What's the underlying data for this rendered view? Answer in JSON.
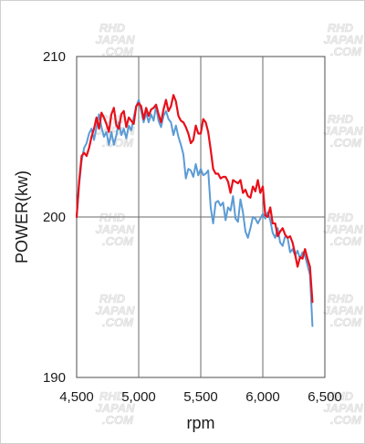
{
  "watermark": {
    "lines": [
      "RHD",
      "JAPAN",
      ".COM"
    ]
  },
  "chart_data": {
    "type": "line",
    "title": "",
    "xlabel": "rpm",
    "ylabel": "POWER(kw)",
    "xlim": [
      4500,
      6500
    ],
    "ylim": [
      190,
      210
    ],
    "xticks": [
      4500,
      5000,
      5500,
      6000,
      6500
    ],
    "xtick_labels": [
      "4,500",
      "5,000",
      "5,500",
      "6,000",
      "6,500"
    ],
    "yticks": [
      190,
      200,
      210
    ],
    "ytick_labels": [
      "190",
      "200",
      "210"
    ],
    "grid": {
      "vertical": true,
      "horizontal": true
    },
    "legend": "none",
    "series": [
      {
        "color": "#5b9bd5",
        "points": [
          [
            4500,
            200.0
          ],
          [
            4520,
            202.0
          ],
          [
            4540,
            203.5
          ],
          [
            4560,
            204.3
          ],
          [
            4580,
            204.6
          ],
          [
            4600,
            205.2
          ],
          [
            4620,
            205.5
          ],
          [
            4640,
            204.8
          ],
          [
            4660,
            205.6
          ],
          [
            4680,
            206.4
          ],
          [
            4700,
            205.6
          ],
          [
            4720,
            205.0
          ],
          [
            4740,
            205.3
          ],
          [
            4760,
            204.5
          ],
          [
            4780,
            205.3
          ],
          [
            4800,
            204.5
          ],
          [
            4820,
            205.1
          ],
          [
            4840,
            205.9
          ],
          [
            4860,
            205.1
          ],
          [
            4880,
            205.5
          ],
          [
            4900,
            204.9
          ],
          [
            4920,
            205.7
          ],
          [
            4940,
            205.4
          ],
          [
            4960,
            206.2
          ],
          [
            4980,
            206.9
          ],
          [
            5000,
            207.3
          ],
          [
            5020,
            206.6
          ],
          [
            5040,
            205.9
          ],
          [
            5060,
            206.5
          ],
          [
            5080,
            205.9
          ],
          [
            5100,
            206.4
          ],
          [
            5120,
            206.0
          ],
          [
            5140,
            206.9
          ],
          [
            5160,
            206.0
          ],
          [
            5180,
            205.6
          ],
          [
            5200,
            206.3
          ],
          [
            5220,
            206.6
          ],
          [
            5240,
            206.1
          ],
          [
            5260,
            205.9
          ],
          [
            5280,
            205.1
          ],
          [
            5300,
            205.7
          ],
          [
            5320,
            205.0
          ],
          [
            5340,
            204.5
          ],
          [
            5360,
            203.9
          ],
          [
            5380,
            202.4
          ],
          [
            5400,
            203.0
          ],
          [
            5420,
            202.9
          ],
          [
            5440,
            202.5
          ],
          [
            5460,
            203.3
          ],
          [
            5480,
            202.6
          ],
          [
            5500,
            203.0
          ],
          [
            5520,
            202.6
          ],
          [
            5540,
            202.7
          ],
          [
            5560,
            202.9
          ],
          [
            5580,
            200.6
          ],
          [
            5600,
            199.6
          ],
          [
            5620,
            200.9
          ],
          [
            5640,
            201.0
          ],
          [
            5660,
            200.7
          ],
          [
            5680,
            200.9
          ],
          [
            5700,
            199.8
          ],
          [
            5720,
            200.6
          ],
          [
            5740,
            200.4
          ],
          [
            5760,
            201.3
          ],
          [
            5780,
            199.9
          ],
          [
            5800,
            199.7
          ],
          [
            5820,
            201.1
          ],
          [
            5840,
            200.3
          ],
          [
            5860,
            199.1
          ],
          [
            5880,
            198.7
          ],
          [
            5900,
            199.3
          ],
          [
            5920,
            200.0
          ],
          [
            5940,
            199.9
          ],
          [
            5960,
            199.6
          ],
          [
            5980,
            199.9
          ],
          [
            6000,
            200.2
          ],
          [
            6020,
            199.9
          ],
          [
            6040,
            200.3
          ],
          [
            6060,
            199.8
          ],
          [
            6080,
            199.0
          ],
          [
            6100,
            198.7
          ],
          [
            6120,
            199.3
          ],
          [
            6140,
            198.4
          ],
          [
            6160,
            198.2
          ],
          [
            6180,
            198.8
          ],
          [
            6200,
            198.7
          ],
          [
            6220,
            197.8
          ],
          [
            6240,
            198.0
          ],
          [
            6260,
            197.6
          ],
          [
            6280,
            197.9
          ],
          [
            6300,
            197.4
          ],
          [
            6320,
            197.8
          ],
          [
            6340,
            197.6
          ],
          [
            6360,
            197.0
          ],
          [
            6380,
            196.4
          ],
          [
            6400,
            193.2
          ]
        ]
      },
      {
        "color": "#e8101a",
        "points": [
          [
            4500,
            200.0
          ],
          [
            4520,
            202.2
          ],
          [
            4540,
            203.8
          ],
          [
            4560,
            204.0
          ],
          [
            4580,
            203.8
          ],
          [
            4600,
            204.3
          ],
          [
            4620,
            205.0
          ],
          [
            4640,
            205.5
          ],
          [
            4660,
            206.2
          ],
          [
            4680,
            205.5
          ],
          [
            4700,
            206.5
          ],
          [
            4720,
            206.2
          ],
          [
            4740,
            205.8
          ],
          [
            4760,
            205.3
          ],
          [
            4780,
            206.4
          ],
          [
            4800,
            206.8
          ],
          [
            4820,
            205.7
          ],
          [
            4840,
            205.5
          ],
          [
            4860,
            206.4
          ],
          [
            4880,
            206.6
          ],
          [
            4900,
            205.6
          ],
          [
            4920,
            206.2
          ],
          [
            4940,
            206.0
          ],
          [
            4960,
            205.8
          ],
          [
            4980,
            206.9
          ],
          [
            5000,
            207.1
          ],
          [
            5020,
            206.9
          ],
          [
            5040,
            206.1
          ],
          [
            5060,
            206.8
          ],
          [
            5080,
            206.3
          ],
          [
            5100,
            206.7
          ],
          [
            5120,
            206.8
          ],
          [
            5140,
            207.0
          ],
          [
            5160,
            206.4
          ],
          [
            5180,
            205.9
          ],
          [
            5200,
            206.7
          ],
          [
            5220,
            207.3
          ],
          [
            5240,
            206.6
          ],
          [
            5260,
            206.9
          ],
          [
            5280,
            207.6
          ],
          [
            5300,
            207.2
          ],
          [
            5320,
            206.3
          ],
          [
            5340,
            206.0
          ],
          [
            5360,
            205.9
          ],
          [
            5380,
            205.6
          ],
          [
            5400,
            205.2
          ],
          [
            5420,
            204.6
          ],
          [
            5440,
            204.8
          ],
          [
            5460,
            205.7
          ],
          [
            5480,
            205.2
          ],
          [
            5500,
            205.2
          ],
          [
            5520,
            206.1
          ],
          [
            5540,
            205.9
          ],
          [
            5560,
            205.3
          ],
          [
            5580,
            204.2
          ],
          [
            5600,
            203.0
          ],
          [
            5620,
            202.7
          ],
          [
            5640,
            202.7
          ],
          [
            5660,
            202.4
          ],
          [
            5680,
            202.5
          ],
          [
            5700,
            202.5
          ],
          [
            5720,
            202.2
          ],
          [
            5740,
            201.5
          ],
          [
            5760,
            202.3
          ],
          [
            5780,
            202.2
          ],
          [
            5800,
            202.1
          ],
          [
            5820,
            202.3
          ],
          [
            5840,
            201.5
          ],
          [
            5860,
            201.7
          ],
          [
            5880,
            201.3
          ],
          [
            5900,
            201.2
          ],
          [
            5920,
            201.9
          ],
          [
            5940,
            201.6
          ],
          [
            5960,
            202.3
          ],
          [
            5980,
            201.5
          ],
          [
            6000,
            201.9
          ],
          [
            6020,
            200.1
          ],
          [
            6040,
            200.0
          ],
          [
            6060,
            200.6
          ],
          [
            6080,
            199.6
          ],
          [
            6100,
            199.6
          ],
          [
            6120,
            198.8
          ],
          [
            6140,
            199.1
          ],
          [
            6160,
            199.3
          ],
          [
            6180,
            198.9
          ],
          [
            6200,
            198.7
          ],
          [
            6220,
            198.8
          ],
          [
            6240,
            198.4
          ],
          [
            6260,
            197.7
          ],
          [
            6280,
            196.9
          ],
          [
            6300,
            197.5
          ],
          [
            6320,
            197.4
          ],
          [
            6340,
            198.0
          ],
          [
            6360,
            197.4
          ],
          [
            6380,
            196.9
          ],
          [
            6400,
            194.7
          ]
        ]
      }
    ]
  }
}
